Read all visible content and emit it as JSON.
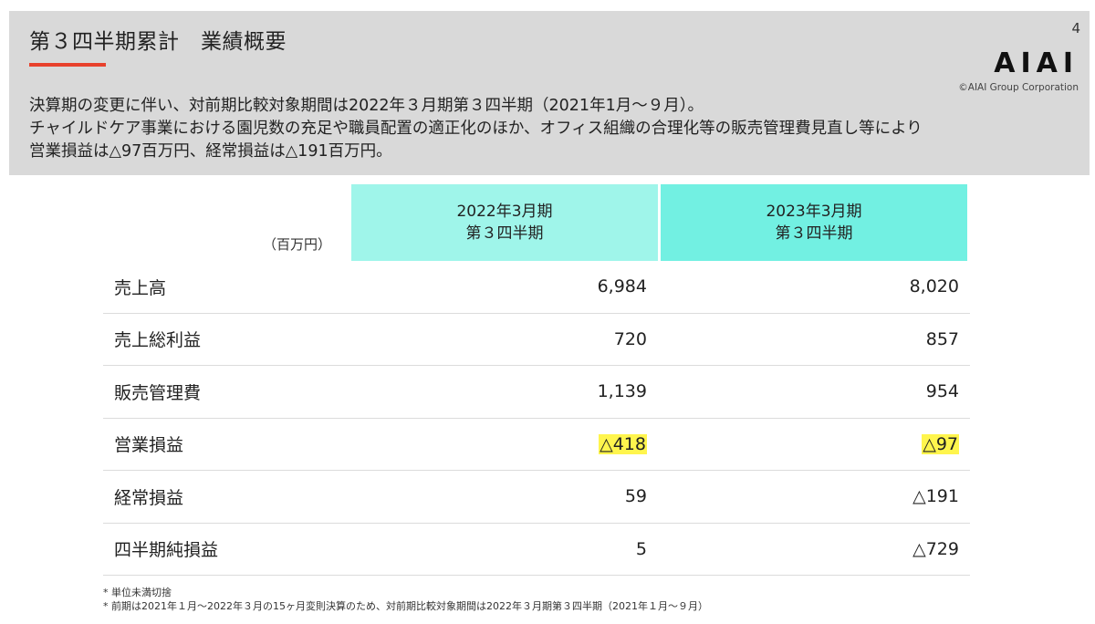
{
  "page": {
    "title": "第３四半期累計　業績概要",
    "number": "4",
    "accent_color": "#e8412c"
  },
  "brand": {
    "logo_text": "AIAI",
    "copyright": "©AIAI Group Corporation"
  },
  "summary": {
    "lines": [
      "決算期の変更に伴い、対前期比較対象期間は2022年３月期第３四半期（2021年1月～９月）。",
      "チャイルドケア事業における園児数の充足や職員配置の適正化のほか、オフィス組織の合理化等の販売管理費見直し等により",
      "営業損益は△97百万円、経常損益は△191百万円。"
    ]
  },
  "table": {
    "unit": "（百万円）",
    "columns": [
      {
        "line1": "2022年3月期",
        "line2": "第３四半期",
        "color": "#9ff5ea"
      },
      {
        "line1": "2023年3月期",
        "line2": "第３四半期",
        "color": "#72f0e2"
      }
    ],
    "rows": [
      {
        "label": "売上高",
        "values": [
          "6,984",
          "8,020"
        ],
        "highlight": false
      },
      {
        "label": "売上総利益",
        "values": [
          "720",
          "857"
        ],
        "highlight": false
      },
      {
        "label": "販売管理費",
        "values": [
          "1,139",
          "954"
        ],
        "highlight": false
      },
      {
        "label": "営業損益",
        "values": [
          "△418",
          "△97"
        ],
        "highlight": true
      },
      {
        "label": "経常損益",
        "values": [
          "59",
          "△191"
        ],
        "highlight": false
      },
      {
        "label": "四半期純損益",
        "values": [
          "5",
          "△729"
        ],
        "highlight": false
      }
    ],
    "highlight_color": "#fff54d"
  },
  "footnotes": [
    "* 単位未満切捨",
    "* 前期は2021年１月～2022年３月の15ヶ月変則決算のため、対前期比較対象期間は2022年３月期第３四半期（2021年１月～９月）"
  ]
}
